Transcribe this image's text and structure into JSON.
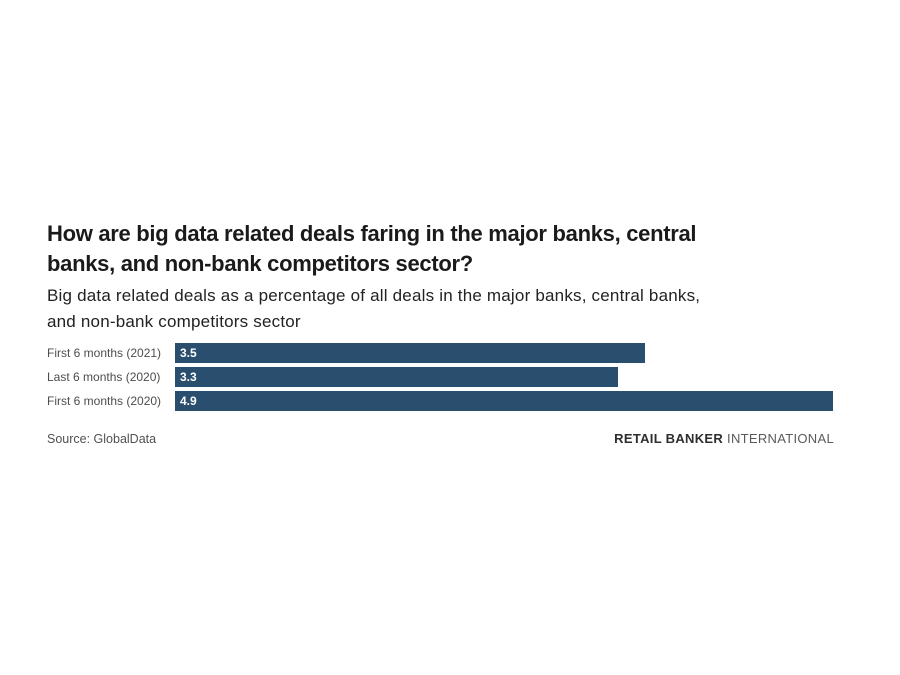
{
  "chart_data": {
    "type": "bar",
    "orientation": "horizontal",
    "title": "How are big data related deals faring in the major banks, central banks, and non-bank competitors sector?",
    "title_lines": [
      "How are big data related deals faring in the major banks, central",
      "banks, and non-bank competitors sector?"
    ],
    "subtitle": "Big data related deals as a percentage of all deals in the major banks, central banks, and non-bank competitors sector",
    "subtitle_lines": [
      "Big data related deals as a percentage of all deals in the major banks, central banks,",
      "and non-bank competitors sector"
    ],
    "categories": [
      "First 6 months (2021)",
      "Last 6 months (2020)",
      "First 6 months (2020)"
    ],
    "values": [
      3.5,
      3.3,
      4.9
    ],
    "value_labels": [
      "3.5",
      "3.3",
      "4.9"
    ],
    "xlim": [
      0,
      4.9
    ],
    "grid": false,
    "legend": false,
    "bar_color": "#2a4f6e",
    "value_label_color": "#ffffff"
  },
  "footer": {
    "source": "Source: GlobalData",
    "brand_bold": "RETAIL BANKER",
    "brand_light": "INTERNATIONAL"
  }
}
